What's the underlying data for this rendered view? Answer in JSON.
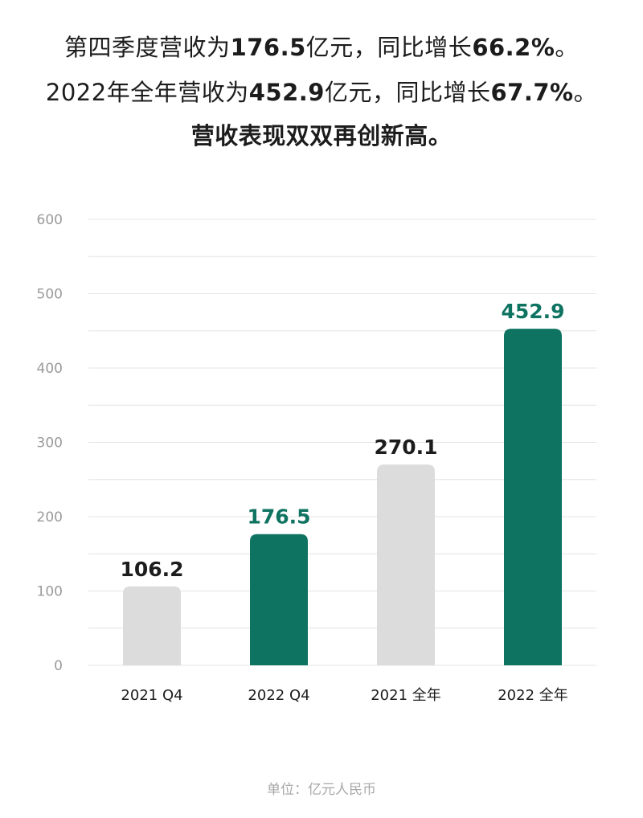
{
  "headline": {
    "line1": {
      "pre": "第四季度营收为",
      "v1": "176.5",
      "mid": "亿元，同比增长",
      "v2": "66.2%",
      "post": "。"
    },
    "line2": {
      "pre": "2022年全年营收为",
      "v1": "452.9",
      "mid": "亿元，同比增长",
      "v2": "67.7%",
      "post": "。"
    },
    "line3": "营收表现双双再创新高。"
  },
  "unit_note": "单位：亿元人民币",
  "colors": {
    "highlight": "#0f7362",
    "base_bar": "#dcdcdc",
    "grid": "#e4e4e4",
    "label_dark": "#1c1c1c"
  },
  "chart_data": {
    "type": "bar",
    "categories": [
      "2021 Q4",
      "2022 Q4",
      "2021 全年",
      "2022 全年"
    ],
    "values": [
      106.2,
      176.5,
      270.1,
      452.9
    ],
    "value_labels": [
      "106.2",
      "176.5",
      "270.1",
      "452.9"
    ],
    "highlighted": [
      false,
      true,
      false,
      true
    ],
    "ylim": [
      0,
      600
    ],
    "yticks": [
      "0",
      "100",
      "200",
      "300",
      "400",
      "500",
      "600"
    ],
    "grid": true,
    "title": "",
    "xlabel": "",
    "ylabel": ""
  }
}
